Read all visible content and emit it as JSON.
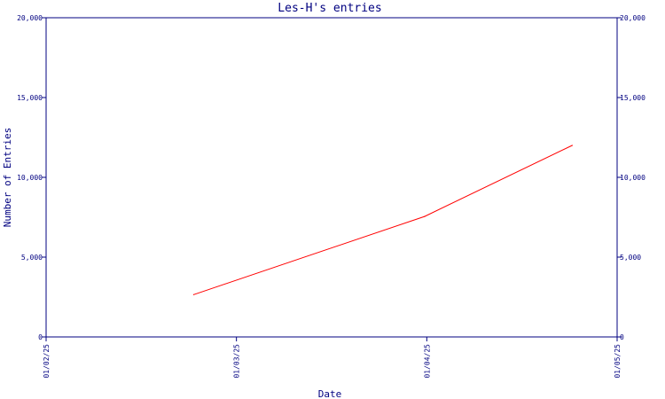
{
  "chart_data": {
    "type": "line",
    "title": "Les-H's entries",
    "xlabel": "Date",
    "ylabel": "Number of Entries",
    "x_tick_labels": [
      "01/02/25",
      "01/03/25",
      "01/04/25",
      "01/05/25"
    ],
    "y_tick_labels": [
      "0",
      "5,000",
      "10,000",
      "15,000",
      "20,000"
    ],
    "y_ticks": [
      0,
      5000,
      10000,
      15000,
      20000
    ],
    "ylim": [
      0,
      20000
    ],
    "xlim": [
      "2025-02-01",
      "2025-05-01"
    ],
    "grid": false,
    "right_axis": true,
    "series": [
      {
        "color": "#ff0000",
        "points": [
          {
            "x": "2025-02-24",
            "y": 2650
          },
          {
            "x": "2025-04-01",
            "y": 7550
          },
          {
            "x": "2025-04-24",
            "y": 12000
          }
        ]
      }
    ],
    "axis_color": "#000080"
  }
}
